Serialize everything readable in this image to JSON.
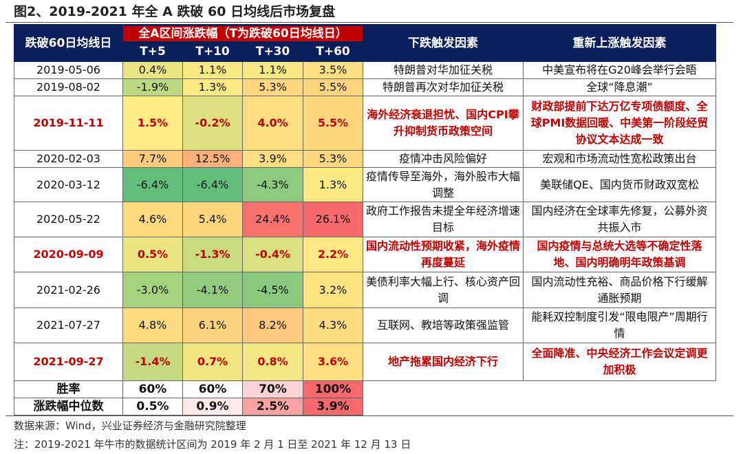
{
  "title": "图2、2019-2021 年全 A 跌破 60 日均线后市场复盘",
  "header": {
    "date": "跌破60日均线日",
    "band": "全A区间涨跌幅（T为跌破60日均线日）",
    "periods": [
      "T+5",
      "T+10",
      "T+30",
      "T+60"
    ],
    "down": "下跌触发因素",
    "up": "重新上涨触发因素"
  },
  "colors": {
    "header_bg": "#0b1f5c",
    "band_bg": "#c00000",
    "highlight_text": "#c00000",
    "scale_low": "#63be7b",
    "scale_mid": "#ffeb84",
    "scale_high": "#f8696b"
  },
  "rows": [
    {
      "date": "2019-05-06",
      "values": [
        "0.4%",
        "1.1%",
        "1.1%",
        "3.5%"
      ],
      "down": "特朗普对华加征关税",
      "up": "中美宣布将在G20峰会举行会晤",
      "highlight": false
    },
    {
      "date": "2019-08-02",
      "values": [
        "-1.9%",
        "1.3%",
        "5.3%",
        "5.5%"
      ],
      "down": "特朗普再次对华加征关税",
      "up": "全球“降息潮”",
      "highlight": false
    },
    {
      "date": "2019-11-11",
      "values": [
        "1.5%",
        "-0.2%",
        "4.0%",
        "5.5%"
      ],
      "down": "海外经济衰退担忧、国内CPI攀升抑制货币政策空间",
      "up": "财政部提前下达万亿专项债额度、全球PMI数据回暖、中美第一阶段经贸协议文本达成一致",
      "highlight": true
    },
    {
      "date": "2020-02-03",
      "values": [
        "7.7%",
        "12.5%",
        "3.9%",
        "5.3%"
      ],
      "down": "疫情冲击风险偏好",
      "up": "宏观和市场流动性宽松政策出台",
      "highlight": false
    },
    {
      "date": "2020-03-12",
      "values": [
        "-6.4%",
        "-6.4%",
        "-4.3%",
        "1.3%"
      ],
      "down": "疫情传导至海外，海外股市大幅调整",
      "up": "美联储QE、国内货币财政双宽松",
      "highlight": false
    },
    {
      "date": "2020-05-22",
      "values": [
        "4.6%",
        "5.4%",
        "24.4%",
        "26.1%"
      ],
      "down": "政府工作报告未提全年经济增速目标",
      "up": "国内经济在全球率先修复，公募外资共振入市",
      "highlight": false
    },
    {
      "date": "2020-09-09",
      "values": [
        "0.5%",
        "-1.3%",
        "-0.4%",
        "2.2%"
      ],
      "down": "国内流动性预期收紧，海外疫情再度蔓延",
      "up": "国内疫情与总统大选等不确定性落地、国内明确明年政策基调",
      "highlight": true
    },
    {
      "date": "2021-02-26",
      "values": [
        "-3.0%",
        "-4.1%",
        "-4.5%",
        "3.2%"
      ],
      "down": "美债利率大幅上行、核心资产回调",
      "up": "国内流动性充裕、商品价格下行缓解通胀预期",
      "highlight": false
    },
    {
      "date": "2021-07-27",
      "values": [
        "4.8%",
        "6.1%",
        "8.2%",
        "4.3%"
      ],
      "down": "互联网、教培等政策强监管",
      "up": "能耗双控制度引发“限电限产”周期行情",
      "highlight": false
    },
    {
      "date": "2021-09-27",
      "values": [
        "-1.4%",
        "0.7%",
        "0.8%",
        "3.6%"
      ],
      "down": "地产拖累国内经济下行",
      "up": "全面降准、中央经济工作会议定调更加积极",
      "highlight": true
    }
  ],
  "summary": [
    {
      "label": "胜率",
      "values": [
        "60%",
        "60%",
        "70%",
        "100%"
      ],
      "colors": [
        "#ffffff",
        "#ffffff",
        "#fbd3d4",
        "#f8696b"
      ]
    },
    {
      "label": "涨跌幅中位数",
      "values": [
        "0.5%",
        "0.9%",
        "2.5%",
        "3.9%"
      ],
      "colors": [
        "#ffffff",
        "#fde9ea",
        "#f9a3a5",
        "#f8696b"
      ]
    }
  ],
  "source": "数据来源：Wind，兴业证券经济与金融研究院整理",
  "note": "注：2019-2021 年牛市的数据统计区间为 2019 年 2 月 1 日至 2021 年 12 月 13 日"
}
